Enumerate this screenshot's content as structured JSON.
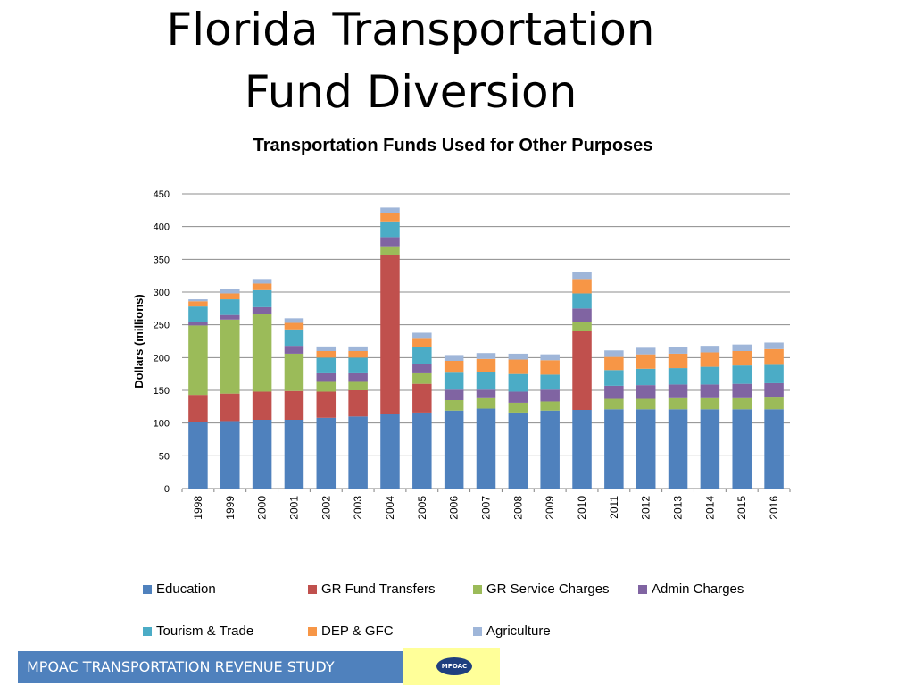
{
  "slide": {
    "title_line1": "Florida Transportation",
    "title_line2": "Fund Diversion"
  },
  "footer": {
    "text": "MPOAC TRANSPORTATION REVENUE STUDY",
    "logo_text": "MPOAC"
  },
  "colors": {
    "Education": "#4f81bd",
    "GR Fund Transfers": "#c0504d",
    "GR Service Charges": "#9bbb59",
    "Admin Charges": "#8064a2",
    "Tourism & Trade": "#4bacc6",
    "DEP & GFC": "#f79646",
    "Agriculture": "#9fb6d9",
    "footer_bar": "#4f81bd",
    "footer_logo_bg": "#ffff99"
  },
  "chart_data": {
    "type": "bar",
    "stacked": true,
    "title": "Transportation Funds Used for Other Purposes",
    "xlabel": "",
    "ylabel": "Dollars (millions)",
    "ylim": [
      0,
      450
    ],
    "yticks": [
      0,
      50,
      100,
      150,
      200,
      250,
      300,
      350,
      400,
      450
    ],
    "grid": true,
    "legend_position": "bottom",
    "categories": [
      "1998",
      "1999",
      "2000",
      "2001",
      "2002",
      "2003",
      "2004",
      "2005",
      "2006",
      "2007",
      "2008",
      "2009",
      "2010",
      "2011",
      "2012",
      "2013",
      "2014",
      "2015",
      "2016"
    ],
    "series": [
      {
        "name": "Education",
        "values": [
          101,
          103,
          105,
          105,
          108,
          110,
          114,
          116,
          119,
          122,
          116,
          119,
          120,
          121,
          121,
          121,
          121,
          121,
          121
        ]
      },
      {
        "name": "GR Fund Transfers",
        "values": [
          42,
          42,
          43,
          44,
          40,
          40,
          243,
          44,
          0,
          0,
          0,
          0,
          120,
          0,
          0,
          0,
          0,
          0,
          0
        ]
      },
      {
        "name": "GR Service Charges",
        "values": [
          106,
          113,
          118,
          57,
          15,
          13,
          13,
          16,
          16,
          16,
          15,
          14,
          14,
          16,
          16,
          17,
          17,
          17,
          18
        ]
      },
      {
        "name": "Admin Charges",
        "values": [
          5,
          7,
          11,
          12,
          13,
          13,
          14,
          14,
          16,
          13,
          17,
          18,
          21,
          20,
          21,
          21,
          21,
          22,
          22
        ]
      },
      {
        "name": "Tourism & Trade",
        "values": [
          24,
          24,
          26,
          25,
          24,
          24,
          24,
          26,
          26,
          27,
          27,
          23,
          23,
          24,
          25,
          25,
          27,
          28,
          28
        ]
      },
      {
        "name": "DEP & GFC",
        "values": [
          8,
          9,
          10,
          10,
          10,
          10,
          12,
          14,
          18,
          20,
          22,
          22,
          22,
          20,
          22,
          22,
          22,
          22,
          24
        ]
      },
      {
        "name": "Agriculture",
        "values": [
          3,
          7,
          7,
          7,
          7,
          7,
          9,
          8,
          9,
          9,
          9,
          9,
          10,
          10,
          10,
          10,
          10,
          10,
          10
        ]
      }
    ]
  }
}
